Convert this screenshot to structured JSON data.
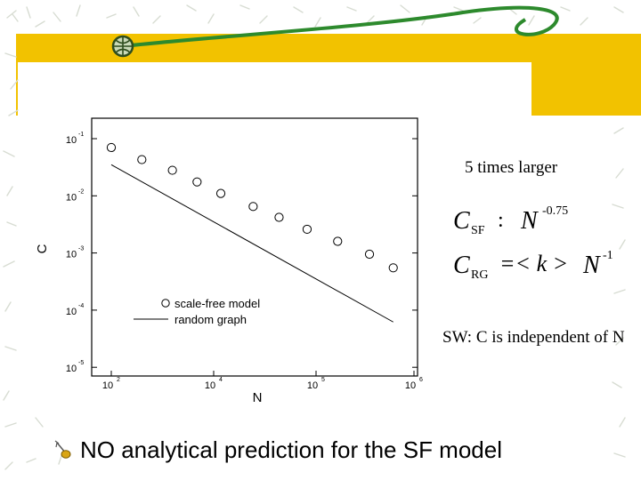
{
  "slide": {
    "note_larger": "5 times larger",
    "sw_note": "SW: C is independent of N",
    "bottom_text": "NO analytical prediction for the SF model",
    "formula": {
      "line1_lhs": "C",
      "line1_sub": "SF",
      "line1_sep": ":",
      "line1_rhs": "N",
      "line1_exp": "-0.75",
      "line2_lhs": "C",
      "line2_sub": "RG",
      "line2_mid": "=< k >",
      "line2_rhs": "N",
      "line2_exp": "-1"
    },
    "colors": {
      "title_bar": "#f2c200",
      "background": "#ffffff",
      "swirl": "#2d8a2d"
    },
    "icons": [
      "globe-icon",
      "leaf-bullet-icon"
    ]
  },
  "chart_data": {
    "type": "scatter",
    "xscale": "log",
    "yscale": "log",
    "xlim": [
      100,
      1000000
    ],
    "ylim": [
      1e-05,
      0.1
    ],
    "xlabel": "N",
    "ylabel": "C",
    "xticks": [
      {
        "value": 100,
        "base": "10",
        "exp": "2"
      },
      {
        "value": 10000,
        "base": "10",
        "exp": "4"
      },
      {
        "value": 100000,
        "base": "10",
        "exp": "5"
      },
      {
        "value": 1000000,
        "base": "10",
        "exp": "6"
      }
    ],
    "yticks": [
      {
        "value": 0.1,
        "base": "10",
        "exp": "-1"
      },
      {
        "value": 0.01,
        "base": "10",
        "exp": "-2"
      },
      {
        "value": 0.001,
        "base": "10",
        "exp": "-3"
      },
      {
        "value": 0.0001,
        "base": "10",
        "exp": "-4"
      },
      {
        "value": 1e-05,
        "base": "10",
        "exp": "-5"
      }
    ],
    "series": [
      {
        "name": "scale-free model",
        "style": "open-circle",
        "x": [
          100,
          200,
          400,
          700,
          1200,
          2500,
          4500,
          8500,
          17000,
          35000,
          60000
        ],
        "y": [
          0.07,
          0.043,
          0.028,
          0.0175,
          0.011,
          0.0065,
          0.0042,
          0.0026,
          0.0016,
          0.00095,
          0.00055
        ]
      },
      {
        "name": "random graph",
        "style": "line",
        "x": [
          100,
          60000
        ],
        "y": [
          0.035,
          6.2e-05
        ]
      }
    ],
    "legend_position": "bottom-left"
  }
}
